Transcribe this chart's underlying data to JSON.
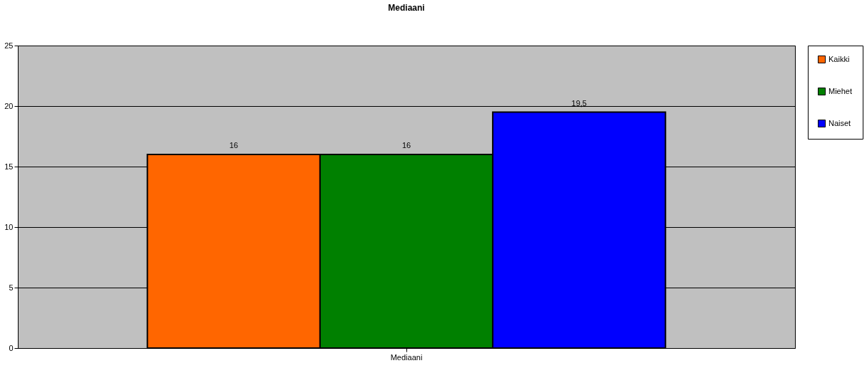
{
  "chart_data": {
    "type": "bar",
    "title": "Mediaani",
    "categories": [
      "Mediaani"
    ],
    "series": [
      {
        "name": "Kaikki",
        "color": "#ff6600",
        "values": [
          16
        ],
        "value_labels": [
          "16"
        ]
      },
      {
        "name": "Miehet",
        "color": "#008000",
        "values": [
          16
        ],
        "value_labels": [
          "16"
        ]
      },
      {
        "name": "Naiset",
        "color": "#0000ff",
        "values": [
          19.5
        ],
        "value_labels": [
          "19,5"
        ]
      }
    ],
    "ylim": [
      0,
      25
    ],
    "yticks": [
      0,
      5,
      10,
      15,
      20,
      25
    ],
    "grid": "y",
    "legend": "right"
  }
}
